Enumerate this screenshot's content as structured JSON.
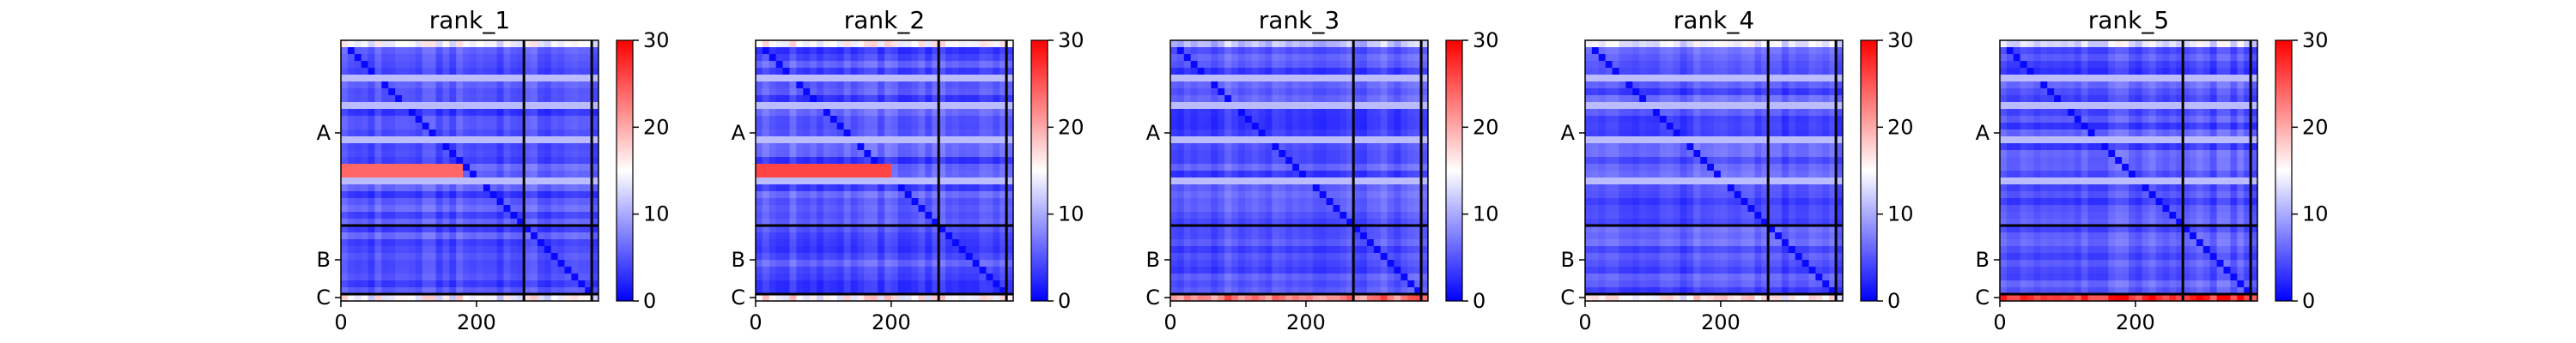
{
  "chart_data": [
    {
      "type": "heatmap",
      "title": "rank_1",
      "x_ticks": [
        0,
        200
      ],
      "y_tick_labels": [
        "A",
        "B",
        "C"
      ],
      "colorbar": {
        "ticks": [
          0,
          10,
          20,
          30
        ],
        "range": [
          0,
          30
        ],
        "colormap": "bwr"
      },
      "chain_boundaries": [
        270,
        370
      ],
      "matrix_size": 380,
      "base_value": 4,
      "hot_row_band": {
        "rows": [
          190,
          194
        ],
        "cols": [
          0,
          180
        ],
        "value": 24
      },
      "bottom_band_value": 14,
      "top_band_value": 20
    },
    {
      "type": "heatmap",
      "title": "rank_2",
      "x_ticks": [
        0,
        200
      ],
      "y_tick_labels": [
        "A",
        "B",
        "C"
      ],
      "colorbar": {
        "ticks": [
          0,
          10,
          20,
          30
        ],
        "range": [
          0,
          30
        ],
        "colormap": "bwr"
      },
      "chain_boundaries": [
        270,
        370
      ],
      "matrix_size": 380,
      "base_value": 4,
      "hot_row_band": {
        "rows": [
          190,
          194
        ],
        "cols": [
          0,
          200
        ],
        "value": 26
      },
      "bottom_band_value": 15,
      "top_band_value": 21
    },
    {
      "type": "heatmap",
      "title": "rank_3",
      "x_ticks": [
        0,
        200
      ],
      "y_tick_labels": [
        "A",
        "B",
        "C"
      ],
      "colorbar": {
        "ticks": [
          0,
          10,
          20,
          30
        ],
        "range": [
          0,
          30
        ],
        "colormap": "bwr"
      },
      "chain_boundaries": [
        270,
        370
      ],
      "matrix_size": 380,
      "base_value": 4,
      "hot_row_band": null,
      "bottom_band_value": 22,
      "top_band_value": 17
    },
    {
      "type": "heatmap",
      "title": "rank_4",
      "x_ticks": [
        0,
        200
      ],
      "y_tick_labels": [
        "A",
        "B",
        "C"
      ],
      "colorbar": {
        "ticks": [
          0,
          10,
          20,
          30
        ],
        "range": [
          0,
          30
        ],
        "colormap": "bwr"
      },
      "chain_boundaries": [
        270,
        370
      ],
      "matrix_size": 380,
      "base_value": 4,
      "hot_row_band": null,
      "bottom_band_value": 15,
      "top_band_value": 19
    },
    {
      "type": "heatmap",
      "title": "rank_5",
      "x_ticks": [
        0,
        200
      ],
      "y_tick_labels": [
        "A",
        "B",
        "C"
      ],
      "colorbar": {
        "ticks": [
          0,
          10,
          20,
          30
        ],
        "range": [
          0,
          30
        ],
        "colormap": "bwr"
      },
      "chain_boundaries": [
        270,
        370
      ],
      "matrix_size": 380,
      "base_value": 4,
      "hot_row_band": null,
      "bottom_band_value": 27,
      "top_band_value": 19
    }
  ]
}
